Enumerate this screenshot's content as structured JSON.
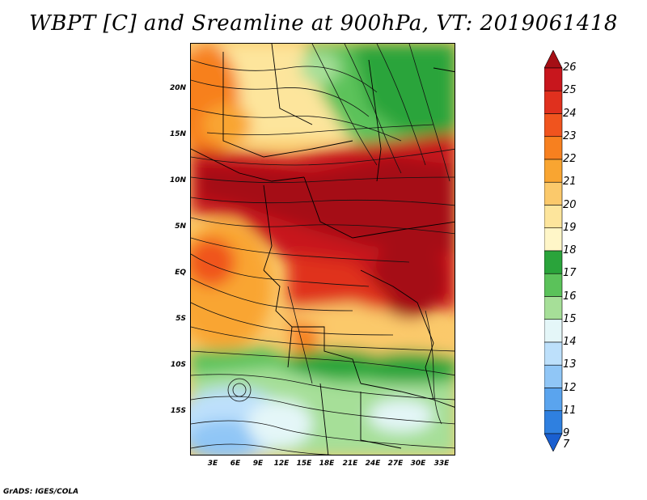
{
  "title": "WBPT [C] and Sreamline at 900hPa, VT: 2019061418",
  "footer": "GrADS: IGES/COLA",
  "map": {
    "lat_labels": [
      "20N",
      "15N",
      "10N",
      "5N",
      "EQ",
      "5S",
      "10S",
      "15S"
    ],
    "lon_labels": [
      "3E",
      "6E",
      "9E",
      "12E",
      "15E",
      "18E",
      "21E",
      "24E",
      "27E",
      "30E",
      "33E"
    ],
    "region": "Central Africa",
    "field": "wet-bulb potential temperature with streamlines"
  },
  "colorbar": {
    "labels": [
      "26",
      "25",
      "24",
      "23",
      "22",
      "21",
      "20",
      "19",
      "18",
      "17",
      "16",
      "15",
      "14",
      "13",
      "12",
      "11",
      "9",
      "7"
    ],
    "colors": [
      "#a50f15",
      "#c8161d",
      "#e0301e",
      "#f0541e",
      "#f7801f",
      "#f9a531",
      "#fbc96b",
      "#fde59c",
      "#fff6c8",
      "#2aa43b",
      "#5bc25a",
      "#a6df98",
      "#e4f6f8",
      "#bde0fb",
      "#90c6f6",
      "#5aa4ee",
      "#2f80e0",
      "#1a5fd0"
    ]
  }
}
